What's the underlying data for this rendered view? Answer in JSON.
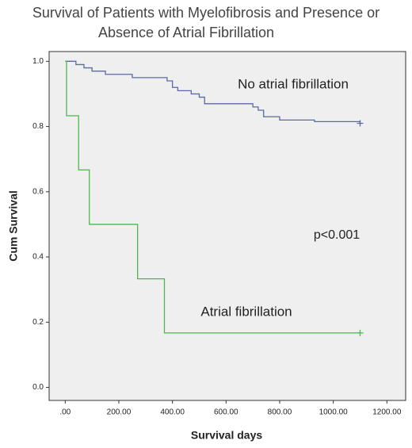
{
  "chart_data": {
    "type": "step",
    "title": "Survival of Patients with Myelofibrosis and Presence or",
    "subtitle": "Absence of Atrial Fibrillation",
    "x_label": "Survival days",
    "y_label": "Cum Survival",
    "annotations": [
      "p<0.001"
    ],
    "xlim": [
      -60,
      1270
    ],
    "ylim": [
      -0.04,
      1.03
    ],
    "xticks": [
      {
        "value": 0,
        "label": ".00"
      },
      {
        "value": 200,
        "label": "200.00"
      },
      {
        "value": 400,
        "label": "400.00"
      },
      {
        "value": 600,
        "label": "600.00"
      },
      {
        "value": 800,
        "label": "800.00"
      },
      {
        "value": 1000,
        "label": "1000.00"
      },
      {
        "value": 1200,
        "label": "1200.00"
      }
    ],
    "yticks": [
      {
        "value": 0,
        "label": "0.0"
      },
      {
        "value": 0.2,
        "label": "0.2"
      },
      {
        "value": 0.4,
        "label": "0.4"
      },
      {
        "value": 0.6,
        "label": "0.6"
      },
      {
        "value": 0.8,
        "label": "0.8"
      },
      {
        "value": 1,
        "label": "1.0"
      }
    ],
    "series": [
      {
        "name": "No atrial fibrillation",
        "color": "#5a6aa8",
        "x": [
          0,
          40,
          70,
          100,
          150,
          250,
          380,
          400,
          420,
          470,
          500,
          520,
          700,
          720,
          740,
          800,
          930,
          1100
        ],
        "values": [
          1,
          0.99,
          0.98,
          0.97,
          0.96,
          0.95,
          0.94,
          0.92,
          0.91,
          0.9,
          0.89,
          0.87,
          0.86,
          0.85,
          0.83,
          0.82,
          0.815,
          0.81
        ]
      },
      {
        "name": "Atrial fibrillation",
        "color": "#4cb84c",
        "x": [
          0,
          5,
          50,
          90,
          270,
          370,
          1100
        ],
        "values": [
          1,
          0.833,
          0.667,
          0.5,
          0.333,
          0.167,
          0.167
        ]
      }
    ]
  }
}
